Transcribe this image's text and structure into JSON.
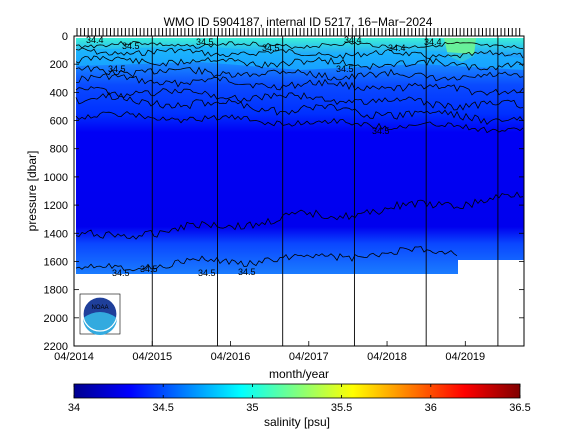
{
  "chart_data": {
    "type": "heatmap",
    "title": "WMO ID 5904187, internal ID 5217, 16−Mar−2024",
    "xlabel": "month/year",
    "ylabel": "pressure [dbar]",
    "x_ticks": [
      "04/2014",
      "04/2015",
      "04/2016",
      "04/2017",
      "04/2018",
      "04/2019"
    ],
    "y_ticks": [
      0,
      200,
      400,
      600,
      800,
      1000,
      1200,
      1400,
      1600,
      1800,
      2000,
      2200
    ],
    "ylim": [
      2200,
      0
    ],
    "xlim": [
      "04/2014",
      "01/2020"
    ],
    "colorbar": {
      "label": "salinity [psu]",
      "ticks": [
        34,
        34.5,
        35,
        35.5,
        36,
        36.5
      ],
      "range": [
        34,
        36.5
      ]
    },
    "contour_labels": [
      "34.4",
      "34.5",
      "34.5",
      "34.5",
      "34.4",
      "34.4",
      "34.4",
      "34.5",
      "34.5",
      "34.5"
    ],
    "deep_contour_labels": [
      "34.5",
      "34.5",
      "34.5",
      "34.5"
    ],
    "vertical_profile_gaps": [
      "04/2015",
      "02/2016",
      "12/2016",
      "11/2017",
      "10/2018",
      "09/2019"
    ],
    "salinity_layers": [
      {
        "pressure_range": [
          0,
          150
        ],
        "salinity": 34.9
      },
      {
        "pressure_range": [
          150,
          550
        ],
        "salinity": 34.3
      },
      {
        "pressure_range": [
          550,
          1450
        ],
        "salinity": 34.05
      },
      {
        "pressure_range": [
          1450,
          1700
        ],
        "salinity": 34.5
      }
    ],
    "logo": "NOAA"
  }
}
